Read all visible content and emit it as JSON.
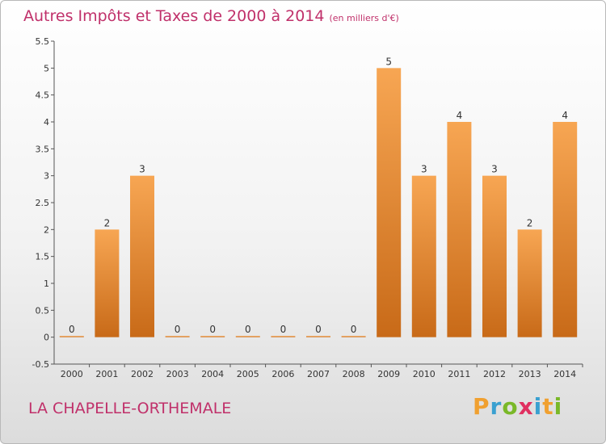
{
  "title": "Autres Impôts et Taxes de 2000 à 2014",
  "unit": "(en milliers d'€)",
  "commune": "LA CHAPELLE-ORTHEMALE",
  "logo": {
    "letters": [
      "P",
      "r",
      "o",
      "x",
      "i",
      "t",
      "i"
    ],
    "colors": [
      "#f0a030",
      "#3aa0d0",
      "#7ab828",
      "#e03060",
      "#3aa0d0",
      "#f0a030",
      "#7ab828"
    ]
  },
  "colors": {
    "bar_top": "#f7a653",
    "bar_bottom": "#c86a18",
    "title": "#c0306a",
    "axis": "#555555"
  },
  "chart_data": {
    "type": "bar",
    "categories": [
      "2000",
      "2001",
      "2002",
      "2003",
      "2004",
      "2005",
      "2006",
      "2007",
      "2008",
      "2009",
      "2010",
      "2011",
      "2012",
      "2013",
      "2014"
    ],
    "values": [
      0,
      2,
      3,
      0,
      0,
      0,
      0,
      0,
      0,
      5,
      3,
      4,
      3,
      2,
      4
    ],
    "data_labels": [
      "0",
      "2",
      "3",
      "0",
      "0",
      "0",
      "0",
      "0",
      "0",
      "5",
      "3",
      "4",
      "3",
      "2",
      "4"
    ],
    "yticks": [
      -0.5,
      0,
      0.5,
      1,
      1.5,
      2,
      2.5,
      3,
      3.5,
      4,
      4.5,
      5,
      5.5
    ],
    "ytick_labels": [
      "-0.5",
      "0",
      "0.5",
      "1",
      "1.5",
      "2",
      "2.5",
      "3",
      "3.5",
      "4",
      "4.5",
      "5",
      "5.5"
    ],
    "ylim": [
      -0.5,
      5.5
    ],
    "grid": false,
    "legend": "none"
  }
}
